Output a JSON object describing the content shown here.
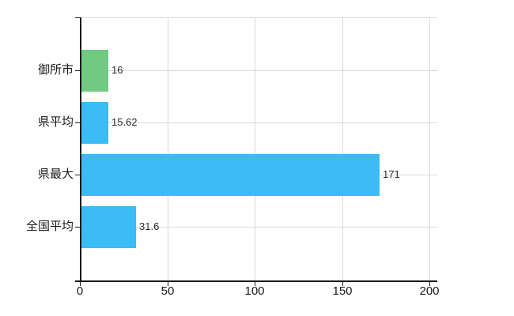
{
  "chart": {
    "background_color": "#ffffff",
    "axis_color": "#1a1a1a",
    "grid_color": "#d9d9d9",
    "text_color": "#1a1a1a",
    "value_text_color": "#2b2b2b"
  },
  "chart_data": {
    "type": "bar",
    "orientation": "horizontal",
    "title": "",
    "xlabel": "",
    "ylabel": "",
    "categories": [
      "御所市",
      "県平均",
      "県最大",
      "全国平均"
    ],
    "values": [
      16,
      15.62,
      171,
      31.6
    ],
    "value_labels": [
      "16",
      "15.62",
      "171",
      "31.6"
    ],
    "bar_colors": [
      "#70ca82",
      "#3bbcf4",
      "#3bbcf4",
      "#3bbcf4"
    ],
    "x_tick_labels": [
      "0",
      "50",
      "100",
      "150",
      "200"
    ],
    "x_tick_values": [
      0,
      50,
      100,
      150,
      200
    ],
    "xlim": [
      0,
      204.5
    ],
    "grid": true,
    "legend_position": "none"
  }
}
